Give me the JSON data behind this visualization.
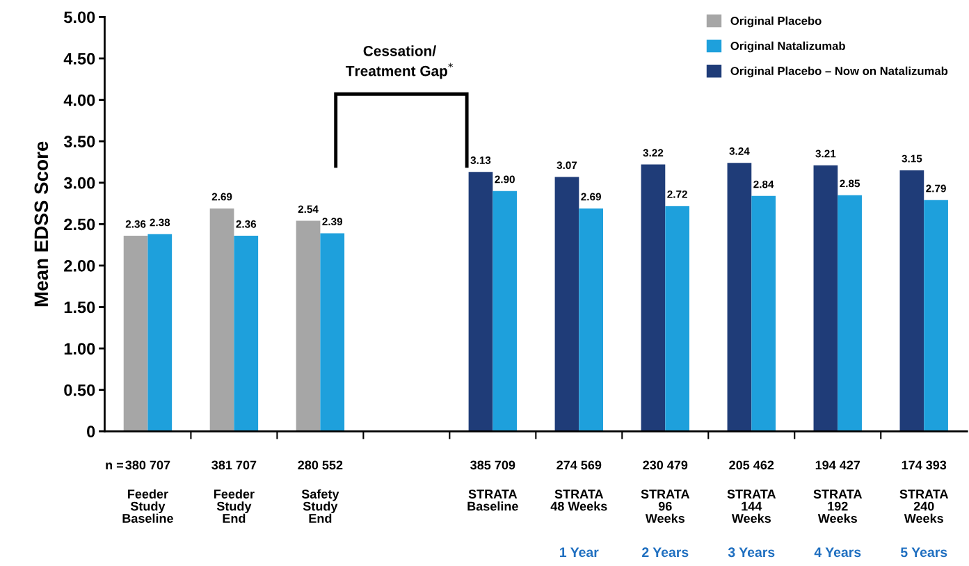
{
  "chart_data": {
    "type": "bar",
    "ylabel": "Mean EDSS Score",
    "categories": [
      "380 707\n\nFeeder\nStudy\nBaseline",
      "381 707\n\nFeeder\nStudy\nEnd",
      "280 552\n\nSafety\nStudy\nEnd",
      null,
      "385 709\n\nSTRATA\nBaseline",
      "274 569\n\nSTRATA\n48 Weeks\n\n1 Year",
      "230 479\n\nSTRATA\n96\nWeeks\n\n2 Years",
      "205 462\n\nSTRATA\n144\nWeeks\n\n3 Years",
      "194 427\n\nSTRATA\n192\nWeeks\n\n4 Years",
      "174 393\n\nSTRATA\n240\nWeeks\n\n5 Years"
    ],
    "series": [
      {
        "name": "Original Placebo",
        "color": "#a6a6a6",
        "values": [
          2.36,
          2.69,
          2.54,
          null,
          null,
          null,
          null,
          null,
          null,
          null
        ],
        "value_labels": [
          "2.36",
          "2.69",
          "2.54",
          null,
          null,
          null,
          null,
          null,
          null,
          null
        ]
      },
      {
        "name": "Original Natalizumab",
        "color": "#1ea0dc",
        "values": [
          2.38,
          2.36,
          2.39,
          null,
          2.9,
          2.69,
          2.72,
          2.84,
          2.85,
          2.79
        ],
        "value_labels": [
          "2.38",
          "2.36",
          "2.39",
          null,
          "2.90",
          "2.69",
          "2.72",
          "2.84",
          "2.85",
          "2.79"
        ]
      },
      {
        "name": "Original Placebo – Now on Natalizumab",
        "color": "#1f3c78",
        "values": [
          null,
          null,
          null,
          null,
          3.13,
          3.07,
          3.22,
          3.24,
          3.21,
          3.15
        ],
        "value_labels": [
          null,
          null,
          null,
          null,
          "3.13",
          "3.07",
          "3.22",
          "3.24",
          "3.21",
          "3.15"
        ]
      }
    ],
    "ylim": [
      0,
      5
    ],
    "yticks": [
      0,
      {
        "value": 0.5,
        "label": "0.50"
      },
      {
        "value": 1,
        "label": "1.00"
      },
      {
        "value": 1.5,
        "label": "1.50"
      },
      {
        "value": 2,
        "label": "2.00"
      },
      {
        "value": 2.5,
        "label": "2.50"
      },
      {
        "value": 3,
        "label": "3.00"
      },
      {
        "value": 3.5,
        "label": "3.50"
      },
      {
        "value": 4,
        "label": "4.00"
      },
      {
        "value": 4.5,
        "label": "4.50"
      },
      {
        "value": 5,
        "label": "5.00"
      }
    ],
    "annotations": [
      "n =",
      "Cessation/\nTreatment Gap$^{*}$"
    ],
    "legend": "top right",
    "grid": false
  }
}
